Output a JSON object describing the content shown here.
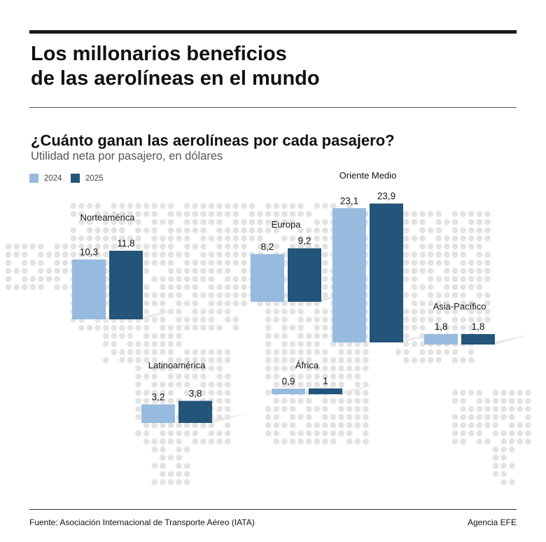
{
  "header": {
    "title_line1": "Los millonarios beneficios",
    "title_line2": "de las aerolíneas en el mundo"
  },
  "chart_data": {
    "type": "bar",
    "title": "¿Cuánto ganan las aerolíneas por cada pasajero?",
    "subtitle": "Utilidad neta por pasajero, en dólares",
    "legend_placement": "top-left",
    "series": [
      {
        "name": "2024",
        "color": "#97bbdf",
        "values": [
          10.3,
          3.2,
          8.2,
          0.9,
          23.1,
          1.8
        ],
        "labels": [
          "10,3",
          "3,2",
          "8,2",
          "0,9",
          "23,1",
          "1,8"
        ]
      },
      {
        "name": "2025",
        "color": "#235479",
        "values": [
          11.8,
          3.8,
          9.2,
          1,
          23.9,
          1.8
        ],
        "labels": [
          "11,8",
          "3,8",
          "9,2",
          "1",
          "23,9",
          "1,8"
        ]
      }
    ],
    "categories": [
      "Norteamérica",
      "Latinoamérica",
      "Europa",
      "África",
      "Oriente Medio",
      "Asia-Pacífico"
    ]
  },
  "footer": {
    "source": "Fuente: Asociación Internacional de Transporte Aéreo (IATA)",
    "credit": "Agencia EFE"
  }
}
